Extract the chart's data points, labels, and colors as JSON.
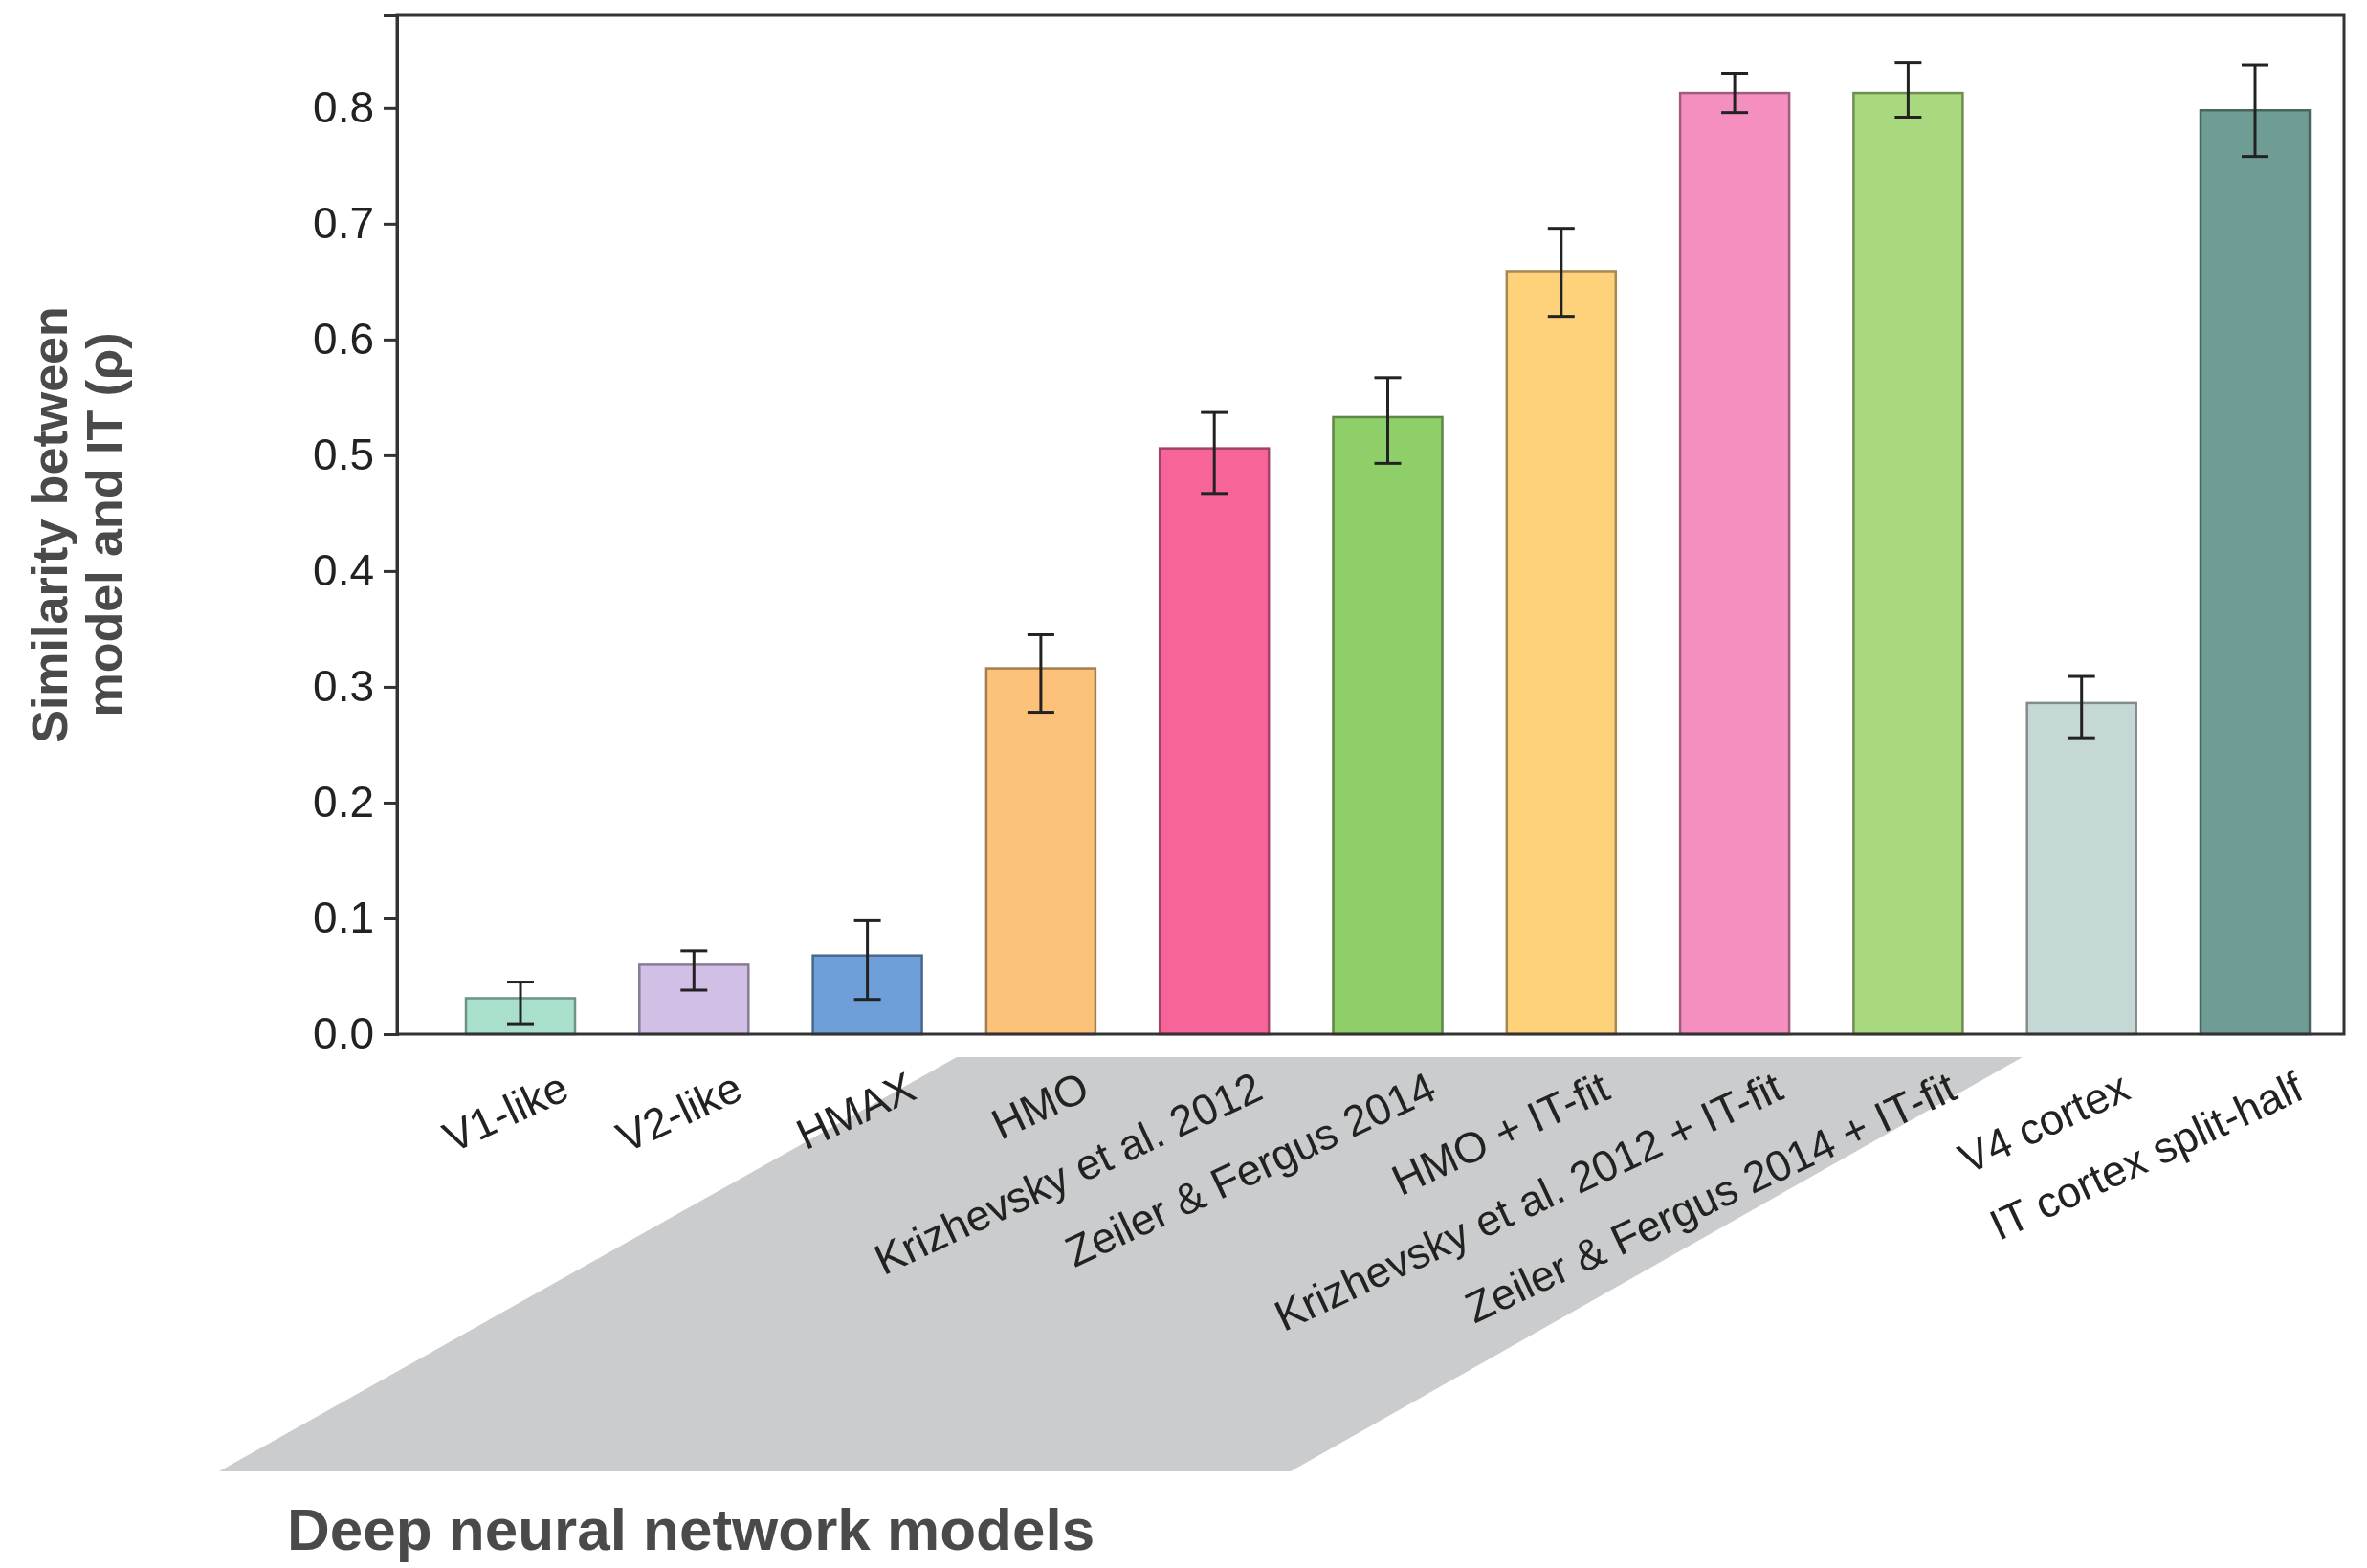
{
  "chart_data": {
    "type": "bar",
    "ylabel": "Similarity between model and IT (ρ)",
    "categories": [
      "V1-like",
      "V2-like",
      "HMAX",
      "HMO",
      "Krizhevsky et al. 2012",
      "Zeiler & Fergus 2014",
      "HMO + IT-fit",
      "Krizhevsky et al. 2012 + IT-fit",
      "Zeiler & Fergus 2014 + IT-fit",
      "V4 cortex",
      "IT cortex split-half"
    ],
    "values": [
      0.031,
      0.06,
      0.068,
      0.316,
      0.506,
      0.533,
      0.659,
      0.813,
      0.813,
      0.286,
      0.798
    ],
    "colors": [
      "#a8e0cc",
      "#d2bfe6",
      "#6f9fd8",
      "#fcc27a",
      "#f7649a",
      "#8fcf6a",
      "#fdd27a",
      "#f48fc0",
      "#a8d97e",
      "#c5d8d6",
      "#6f9c94"
    ],
    "errors": [
      [
        0.009,
        0.045
      ],
      [
        0.038,
        0.072
      ],
      [
        0.03,
        0.098
      ],
      [
        0.278,
        0.345
      ],
      [
        0.467,
        0.537
      ],
      [
        0.493,
        0.567
      ],
      [
        0.62,
        0.696
      ],
      [
        0.796,
        0.83
      ],
      [
        0.792,
        0.839
      ],
      [
        0.256,
        0.309
      ],
      [
        0.758,
        0.837
      ]
    ],
    "ylim": [
      0,
      0.88
    ],
    "yticks": [
      {
        "value": 0,
        "label": "0.0"
      },
      0.1,
      0.2,
      0.3,
      0.4,
      0.5,
      0.6,
      0.7,
      0.8
    ],
    "annotations": [
      "Deep neural network models"
    ]
  }
}
